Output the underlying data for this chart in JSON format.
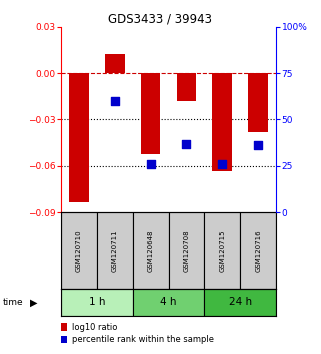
{
  "title": "GDS3433 / 39943",
  "samples": [
    "GSM120710",
    "GSM120711",
    "GSM120648",
    "GSM120708",
    "GSM120715",
    "GSM120716"
  ],
  "groups": [
    {
      "label": "1 h",
      "indices": [
        0,
        1
      ],
      "color": "#b8f0b8"
    },
    {
      "label": "4 h",
      "indices": [
        2,
        3
      ],
      "color": "#70d070"
    },
    {
      "label": "24 h",
      "indices": [
        4,
        5
      ],
      "color": "#40b840"
    }
  ],
  "log10_ratio": [
    -0.083,
    0.012,
    -0.052,
    -0.018,
    -0.063,
    -0.038
  ],
  "percentile_rank": [
    null,
    60,
    26,
    37,
    26,
    36
  ],
  "ylim_left": [
    -0.09,
    0.03
  ],
  "ylim_right": [
    0,
    100
  ],
  "yticks_left": [
    0.03,
    0,
    -0.03,
    -0.06,
    -0.09
  ],
  "yticks_right": [
    100,
    75,
    50,
    25,
    0
  ],
  "bar_color": "#cc0000",
  "dot_color": "#0000cc",
  "bar_width": 0.55,
  "dot_size": 30,
  "label_log10": "log10 ratio",
  "label_percentile": "percentile rank within the sample",
  "sample_box_color": "#cccccc",
  "time_label": "time"
}
